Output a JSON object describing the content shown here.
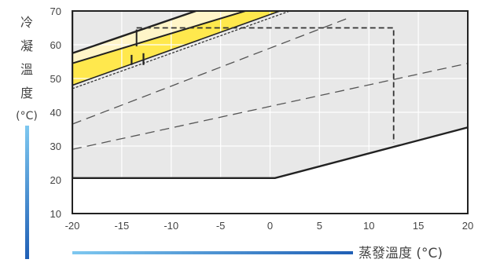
{
  "chart_data": {
    "type": "line",
    "title": "",
    "xlabel": "蒸發溫度 (°C)",
    "ylabel_lines": [
      "冷",
      "凝",
      "溫",
      "度",
      "(°C)"
    ],
    "xlim": [
      -20,
      20
    ],
    "ylim": [
      10,
      70
    ],
    "x_ticks": [
      -20,
      -15,
      -10,
      -5,
      0,
      5,
      10,
      15,
      20
    ],
    "y_ticks": [
      10,
      20,
      30,
      40,
      50,
      60,
      70
    ],
    "grid": true,
    "regions": [
      {
        "name": "outer-envelope",
        "fill": "#e8e8e8",
        "points": [
          [
            -20,
            20.5
          ],
          [
            0.5,
            20.5
          ],
          [
            20,
            35.5
          ],
          [
            20,
            70
          ],
          [
            -20,
            70
          ]
        ]
      },
      {
        "name": "yellow-band",
        "fill": "#ffe84d",
        "points": [
          [
            -20,
            48
          ],
          [
            1,
            70
          ],
          [
            -2.5,
            70
          ],
          [
            -20,
            54.5
          ]
        ]
      },
      {
        "name": "cream-band",
        "fill": "#fff5c8",
        "points": [
          [
            -20,
            54.5
          ],
          [
            -2.5,
            70
          ],
          [
            -7.5,
            70
          ],
          [
            -20,
            57.5
          ]
        ]
      }
    ],
    "lines": [
      {
        "name": "envelope-outline",
        "style": "solid",
        "width": 2.4,
        "color": "#222222",
        "points": [
          [
            -20,
            70
          ],
          [
            -20,
            20.5
          ],
          [
            0.5,
            20.5
          ],
          [
            20,
            35.5
          ]
        ]
      },
      {
        "name": "upper-solid-line",
        "style": "solid",
        "width": 2.4,
        "color": "#222222",
        "points": [
          [
            -20,
            57.5
          ],
          [
            -7.5,
            70
          ]
        ]
      },
      {
        "name": "mid-solid-line",
        "style": "solid",
        "width": 2,
        "color": "#222222",
        "points": [
          [
            -20,
            54.5
          ],
          [
            -2.5,
            70
          ]
        ]
      },
      {
        "name": "band-lower-line",
        "style": "solid",
        "width": 1.6,
        "color": "#222222",
        "points": [
          [
            -20,
            48
          ],
          [
            1,
            70
          ]
        ]
      },
      {
        "name": "fine-dashed-line",
        "style": "dashed",
        "dash": "3,2",
        "width": 1.3,
        "color": "#333333",
        "points": [
          [
            -20,
            47
          ],
          [
            2,
            70
          ]
        ]
      },
      {
        "name": "long-dash-line-a",
        "style": "dashed",
        "dash": "12,7",
        "width": 1.3,
        "color": "#555555",
        "points": [
          [
            -20,
            36.5
          ],
          [
            8,
            68
          ]
        ]
      },
      {
        "name": "long-dash-line-b",
        "style": "dashed",
        "dash": "12,7",
        "width": 1.3,
        "color": "#555555",
        "points": [
          [
            -20,
            29
          ],
          [
            20,
            54.5
          ]
        ]
      },
      {
        "name": "dashed-box",
        "style": "dashed",
        "dash": "7,4",
        "width": 1.8,
        "color": "#333333",
        "points": [
          [
            -13.5,
            65
          ],
          [
            12.5,
            65
          ],
          [
            12.5,
            31
          ]
        ]
      },
      {
        "name": "step-vertical",
        "style": "solid",
        "width": 2,
        "color": "#222222",
        "points": [
          [
            -13.5,
            59.5
          ],
          [
            -13.5,
            64.5
          ]
        ]
      },
      {
        "name": "marker-left",
        "style": "solid",
        "width": 2.2,
        "color": "#222222",
        "points": [
          [
            -14,
            54
          ],
          [
            -14,
            57
          ]
        ]
      },
      {
        "name": "marker-right",
        "style": "solid",
        "width": 2.2,
        "color": "#222222",
        "points": [
          [
            -12.8,
            54
          ],
          [
            -12.8,
            57.5
          ]
        ]
      }
    ]
  }
}
